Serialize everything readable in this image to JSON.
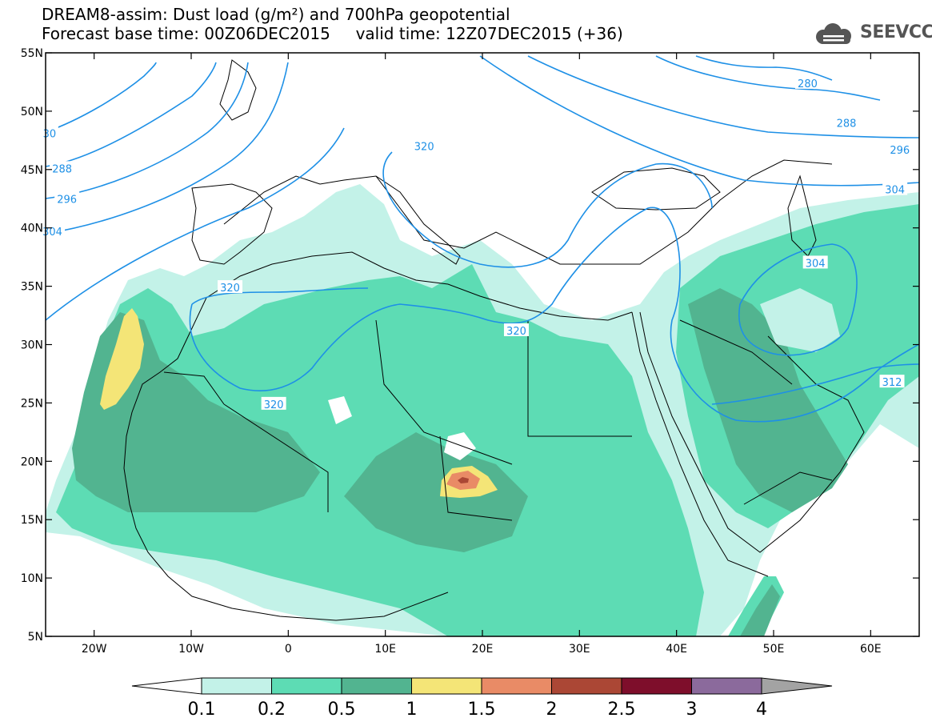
{
  "title_line1": "DREAM8-assim: Dust load (g/m²) and 700hPa geopotential",
  "title_line2": "Forecast base time: 00Z06DEC2015     valid time: 12Z07DEC2015 (+36)",
  "logo_text": "SEEVCCC",
  "map": {
    "lon_range": [
      -25,
      65
    ],
    "lat_range": [
      5,
      55
    ],
    "lon_ticks": [
      {
        "v": -20,
        "label": "20W"
      },
      {
        "v": -10,
        "label": "10W"
      },
      {
        "v": 0,
        "label": "0"
      },
      {
        "v": 10,
        "label": "10E"
      },
      {
        "v": 20,
        "label": "20E"
      },
      {
        "v": 30,
        "label": "30E"
      },
      {
        "v": 40,
        "label": "40E"
      },
      {
        "v": 50,
        "label": "50E"
      },
      {
        "v": 60,
        "label": "60E"
      }
    ],
    "lat_ticks": [
      {
        "v": 55,
        "label": "55N"
      },
      {
        "v": 50,
        "label": "50N"
      },
      {
        "v": 45,
        "label": "45N"
      },
      {
        "v": 40,
        "label": "40N"
      },
      {
        "v": 35,
        "label": "35N"
      },
      {
        "v": 30,
        "label": "30N"
      },
      {
        "v": 25,
        "label": "25N"
      },
      {
        "v": 20,
        "label": "20N"
      },
      {
        "v": 15,
        "label": "15N"
      },
      {
        "v": 10,
        "label": "10N"
      },
      {
        "v": 5,
        "label": "5N"
      }
    ],
    "contour_labels": [
      {
        "text": "280",
        "lon": 53.5,
        "lat": 52.4
      },
      {
        "text": "288",
        "lon": 57.5,
        "lat": 49.0
      },
      {
        "text": "296",
        "lon": 63.0,
        "lat": 46.7
      },
      {
        "text": "304",
        "lon": 62.5,
        "lat": 43.3
      },
      {
        "text": "304",
        "lon": 54.3,
        "lat": 37.0
      },
      {
        "text": "312",
        "lon": 62.2,
        "lat": 26.8
      },
      {
        "text": "320",
        "lon": 14.0,
        "lat": 47.0
      },
      {
        "text": "320",
        "lon": -6.0,
        "lat": 34.9
      },
      {
        "text": "320",
        "lon": 23.5,
        "lat": 31.2
      },
      {
        "text": "320",
        "lon": -1.5,
        "lat": 24.9
      },
      {
        "text": "30",
        "lon": -24.6,
        "lat": 48.1
      },
      {
        "text": "288",
        "lon": -23.3,
        "lat": 45.1
      },
      {
        "text": "296",
        "lon": -22.8,
        "lat": 42.5
      },
      {
        "text": "304",
        "lon": -24.3,
        "lat": 39.7
      }
    ]
  },
  "colorbar": {
    "labels": [
      "0.1",
      "0.2",
      "0.5",
      "1",
      "1.5",
      "2",
      "2.5",
      "3",
      "4"
    ],
    "colors": [
      "#c3f2e8",
      "#5ddcb4",
      "#52b490",
      "#f4e577",
      "#e98b66",
      "#ab4735",
      "#7e0e2b",
      "#8b6a9c",
      "#a3a3a3"
    ],
    "under_color": "#ffffff"
  }
}
